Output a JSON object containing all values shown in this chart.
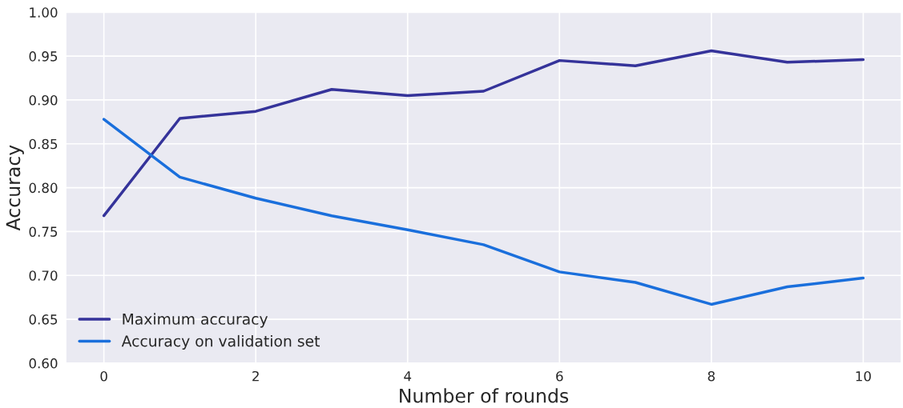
{
  "chart_data": {
    "type": "line",
    "xlabel": "Number of rounds",
    "ylabel": "Accuracy",
    "x": [
      0,
      1,
      2,
      3,
      4,
      5,
      6,
      7,
      8,
      9,
      10
    ],
    "series": [
      {
        "name": "Maximum accuracy",
        "color": "#35339a",
        "values": [
          0.768,
          0.879,
          0.887,
          0.912,
          0.905,
          0.91,
          0.945,
          0.939,
          0.956,
          0.943,
          0.946
        ]
      },
      {
        "name": "Accuracy on validation set",
        "color": "#1a6fdc",
        "values": [
          0.878,
          0.812,
          0.788,
          0.768,
          0.752,
          0.735,
          0.704,
          0.692,
          0.667,
          0.687,
          0.697
        ]
      }
    ],
    "xlim": [
      -0.5,
      10.5
    ],
    "xticks": [
      0,
      2,
      4,
      6,
      8,
      10
    ],
    "ylim": [
      0.6,
      1.0
    ],
    "yticks": [
      {
        "value": 0.6,
        "label": "0.60"
      },
      {
        "value": 0.65,
        "label": "0.65"
      },
      {
        "value": 0.7,
        "label": "0.70"
      },
      {
        "value": 0.75,
        "label": "0.75"
      },
      {
        "value": 0.8,
        "label": "0.80"
      },
      {
        "value": 0.85,
        "label": "0.85"
      },
      {
        "value": 0.9,
        "label": "0.90"
      },
      {
        "value": 0.95,
        "label": "0.95"
      },
      {
        "value": 1.0,
        "label": "1.00"
      }
    ],
    "grid": true,
    "legend": "bottom left",
    "line_style": "solid"
  }
}
